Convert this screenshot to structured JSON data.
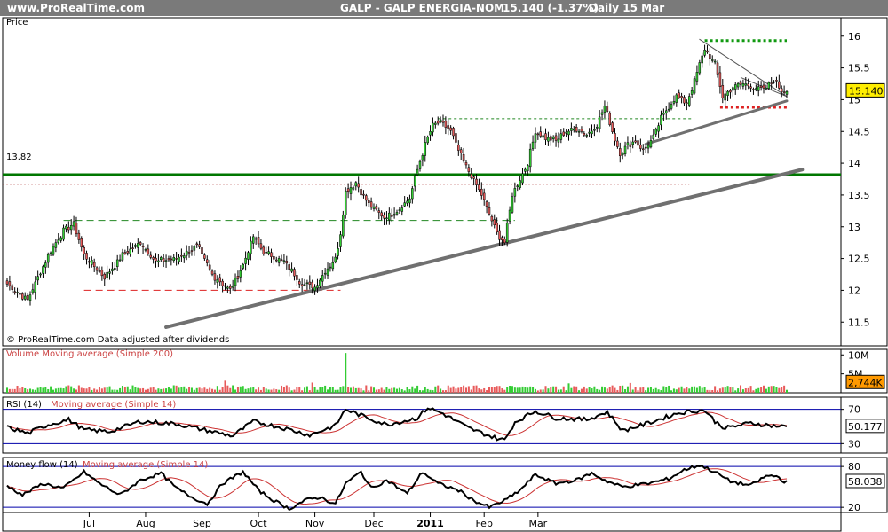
{
  "header": {
    "site": "www.ProRealTime.com",
    "title": "GALP - GALP ENERGIA-NOM",
    "last": "15.140 (-1.37%)",
    "period": "Daily 15 Mar"
  },
  "colors": {
    "up": "#33cc33",
    "down": "#e85a5a",
    "level_line": "#007700",
    "trend_line": "#777777",
    "hline_red": "#cc0000",
    "rsi_line": "#000000",
    "ma_line": "#cc3333",
    "band_line": "#0000aa"
  },
  "chart_data": [
    {
      "type": "candlestick",
      "panel": "price",
      "title": "Price",
      "y_ticks": [
        "16",
        "15.5",
        "15",
        "14.5",
        "14",
        "13.5",
        "13",
        "12.5",
        "12",
        "11.5"
      ],
      "ylim": [
        11.35,
        16.15
      ],
      "x_ticks": [
        "Jul",
        "Aug",
        "Sep",
        "Oct",
        "Nov",
        "Dec",
        "2011",
        "Feb",
        "Mar"
      ],
      "last_value": "15.140",
      "level_label": "13.82",
      "level_value": 13.82,
      "dotted_level": 13.67,
      "source_note": "© ProRealTime.com  Data adjusted after dividends",
      "closes_anchor": [
        [
          0,
          12.1
        ],
        [
          8,
          11.85
        ],
        [
          16,
          12.55
        ],
        [
          22,
          12.95
        ],
        [
          26,
          13.05
        ],
        [
          30,
          12.55
        ],
        [
          38,
          12.2
        ],
        [
          45,
          12.55
        ],
        [
          52,
          12.75
        ],
        [
          58,
          12.45
        ],
        [
          66,
          12.5
        ],
        [
          74,
          12.7
        ],
        [
          80,
          12.25
        ],
        [
          87,
          12.0
        ],
        [
          92,
          12.4
        ],
        [
          96,
          12.85
        ],
        [
          100,
          12.6
        ],
        [
          108,
          12.45
        ],
        [
          115,
          12.1
        ],
        [
          120,
          12.05
        ],
        [
          124,
          12.3
        ],
        [
          128,
          12.5
        ],
        [
          130,
          12.9
        ],
        [
          132,
          13.55
        ],
        [
          136,
          13.7
        ],
        [
          141,
          13.35
        ],
        [
          147,
          13.15
        ],
        [
          152,
          13.25
        ],
        [
          157,
          13.45
        ],
        [
          160,
          13.9
        ],
        [
          163,
          14.3
        ],
        [
          166,
          14.6
        ],
        [
          169,
          14.65
        ],
        [
          173,
          14.5
        ],
        [
          177,
          14.1
        ],
        [
          181,
          13.8
        ],
        [
          185,
          13.5
        ],
        [
          188,
          13.2
        ],
        [
          191,
          12.9
        ],
        [
          194,
          12.75
        ],
        [
          197,
          13.5
        ],
        [
          200,
          13.75
        ],
        [
          203,
          14.0
        ],
        [
          206,
          14.5
        ],
        [
          210,
          14.4
        ],
        [
          214,
          14.35
        ],
        [
          218,
          14.5
        ],
        [
          222,
          14.55
        ],
        [
          226,
          14.45
        ],
        [
          230,
          14.6
        ],
        [
          233,
          14.9
        ],
        [
          236,
          14.5
        ],
        [
          239,
          14.15
        ],
        [
          242,
          14.3
        ],
        [
          245,
          14.35
        ],
        [
          248,
          14.2
        ],
        [
          252,
          14.4
        ],
        [
          255,
          14.7
        ],
        [
          258,
          14.9
        ],
        [
          261,
          15.05
        ],
        [
          265,
          14.95
        ],
        [
          268,
          15.3
        ],
        [
          272,
          15.8
        ],
        [
          276,
          15.55
        ],
        [
          279,
          15.05
        ],
        [
          283,
          15.2
        ],
        [
          287,
          15.25
        ],
        [
          291,
          15.2
        ],
        [
          295,
          15.15
        ],
        [
          299,
          15.3
        ],
        [
          302,
          15.14
        ]
      ],
      "resistance_lines": [
        {
          "from": 22,
          "to": 198,
          "value": 13.1,
          "style": "dashed-green"
        },
        {
          "from": 168,
          "to": 268,
          "value": 14.7,
          "style": "dotted-green"
        },
        {
          "from": 272,
          "to": 304,
          "value": 15.93,
          "style": "dotted-green-heavy"
        }
      ],
      "support_lines": [
        {
          "from": 30,
          "to": 130,
          "value": 12.0,
          "style": "dashed-red"
        },
        {
          "from": 278,
          "to": 304,
          "value": 14.88,
          "style": "dotted-red-heavy"
        }
      ],
      "trend_lines": [
        {
          "from": [
            62,
            11.42
          ],
          "to": [
            310,
            13.9
          ],
          "style": "heavy-grey"
        },
        {
          "from": [
            249,
            14.3
          ],
          "to": [
            304,
            14.98
          ],
          "style": "grey"
        },
        {
          "from": [
            270,
            15.95
          ],
          "to": [
            304,
            15.05
          ],
          "style": "thin-grey"
        }
      ]
    },
    {
      "type": "bar",
      "panel": "volume",
      "title": "Volume Moving average (Simple 200)",
      "y_ticks": [
        "10M",
        "5M"
      ],
      "last_value": "2,744K",
      "spikes": [
        [
          132,
          10.5
        ],
        [
          85,
          3.2
        ],
        [
          119,
          2.7
        ],
        [
          219,
          2.5
        ],
        [
          243,
          2.6
        ]
      ]
    },
    {
      "type": "line",
      "panel": "rsi",
      "title": "RSI (14)",
      "ma_label": "Moving average (Simple 14)",
      "y_ticks": [
        "70",
        "30"
      ],
      "ylim": [
        20,
        80
      ],
      "last_value": "50.177",
      "anchor": [
        [
          0,
          49
        ],
        [
          8,
          42
        ],
        [
          16,
          52
        ],
        [
          24,
          58
        ],
        [
          30,
          46
        ],
        [
          40,
          44
        ],
        [
          52,
          56
        ],
        [
          66,
          53
        ],
        [
          80,
          44
        ],
        [
          88,
          39
        ],
        [
          96,
          56
        ],
        [
          108,
          48
        ],
        [
          118,
          40
        ],
        [
          128,
          51
        ],
        [
          132,
          70
        ],
        [
          138,
          63
        ],
        [
          148,
          52
        ],
        [
          160,
          60
        ],
        [
          164,
          72
        ],
        [
          170,
          65
        ],
        [
          180,
          48
        ],
        [
          190,
          37
        ],
        [
          194,
          34
        ],
        [
          198,
          55
        ],
        [
          206,
          68
        ],
        [
          214,
          60
        ],
        [
          226,
          58
        ],
        [
          234,
          67
        ],
        [
          240,
          45
        ],
        [
          248,
          52
        ],
        [
          256,
          60
        ],
        [
          262,
          66
        ],
        [
          268,
          68
        ],
        [
          272,
          69
        ],
        [
          276,
          56
        ],
        [
          280,
          48
        ],
        [
          290,
          54
        ],
        [
          298,
          51
        ],
        [
          302,
          50
        ]
      ]
    },
    {
      "type": "line",
      "panel": "money_flow",
      "title": "Money flow (14)",
      "ma_label": "Moving average (Simple 14)",
      "y_ticks": [
        "80",
        "20"
      ],
      "ylim": [
        15,
        88
      ],
      "last_value": "58.038",
      "anchor": [
        [
          0,
          52
        ],
        [
          6,
          38
        ],
        [
          14,
          55
        ],
        [
          22,
          48
        ],
        [
          30,
          72
        ],
        [
          36,
          55
        ],
        [
          44,
          38
        ],
        [
          52,
          60
        ],
        [
          60,
          70
        ],
        [
          66,
          48
        ],
        [
          72,
          35
        ],
        [
          78,
          25
        ],
        [
          84,
          55
        ],
        [
          92,
          72
        ],
        [
          98,
          45
        ],
        [
          104,
          30
        ],
        [
          110,
          18
        ],
        [
          116,
          30
        ],
        [
          122,
          35
        ],
        [
          128,
          25
        ],
        [
          132,
          55
        ],
        [
          138,
          72
        ],
        [
          142,
          48
        ],
        [
          148,
          60
        ],
        [
          156,
          40
        ],
        [
          162,
          72
        ],
        [
          168,
          55
        ],
        [
          176,
          45
        ],
        [
          182,
          30
        ],
        [
          188,
          20
        ],
        [
          194,
          30
        ],
        [
          200,
          45
        ],
        [
          206,
          68
        ],
        [
          214,
          55
        ],
        [
          222,
          60
        ],
        [
          228,
          70
        ],
        [
          234,
          58
        ],
        [
          240,
          50
        ],
        [
          250,
          55
        ],
        [
          258,
          62
        ],
        [
          264,
          75
        ],
        [
          270,
          82
        ],
        [
          276,
          72
        ],
        [
          282,
          58
        ],
        [
          290,
          52
        ],
        [
          296,
          66
        ],
        [
          300,
          66
        ],
        [
          303,
          58
        ]
      ]
    }
  ]
}
